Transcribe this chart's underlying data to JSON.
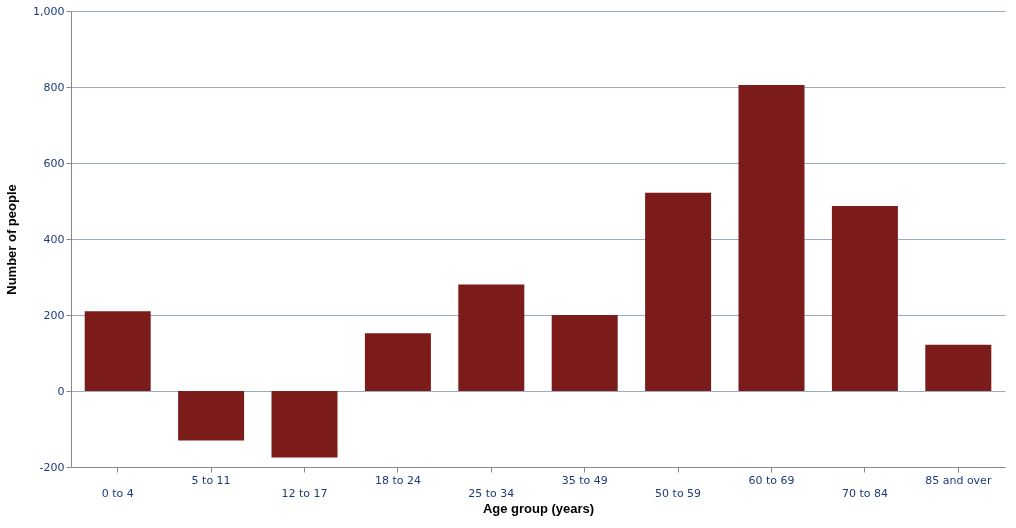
{
  "chart_data": {
    "type": "bar",
    "xlabel": "Age group (years)",
    "ylabel": "Number of people",
    "categories": [
      "0 to 4",
      "5 to 11",
      "12 to 17",
      "18 to 24",
      "25 to 34",
      "35 to 49",
      "50 to 59",
      "60 to 69",
      "70 to 84",
      "85 and over"
    ],
    "values": [
      210,
      -130,
      -175,
      152,
      280,
      200,
      522,
      805,
      487,
      122
    ],
    "color": "#7b1c1a",
    "ylim": [
      -200,
      1000
    ],
    "yticks": [
      -200,
      0,
      200,
      400,
      600,
      800,
      {
        "value": 1000,
        "label": "1,000"
      }
    ],
    "grid": "y"
  }
}
